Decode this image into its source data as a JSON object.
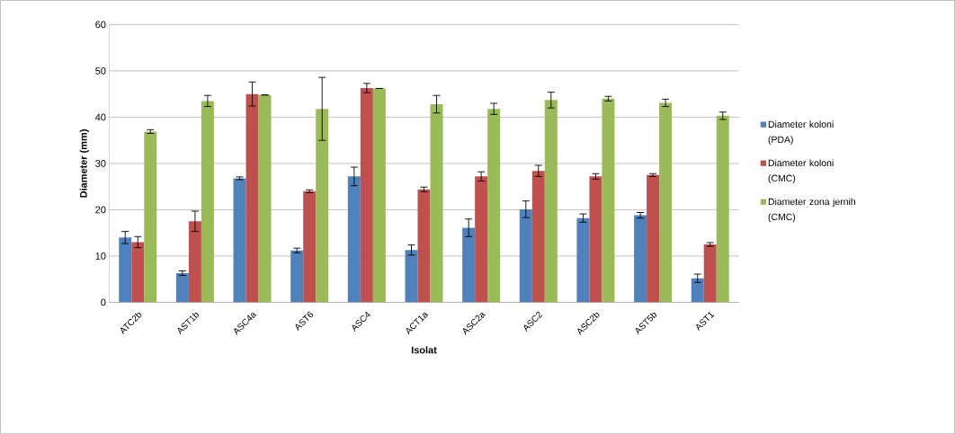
{
  "chart_data": {
    "type": "bar",
    "xlabel": "Isolat",
    "ylabel": "Diameter (mm)",
    "categories": [
      "ATC2b",
      "AST1b",
      "ASC4a",
      "AST6",
      "ASC4",
      "ACT1a",
      "ASC2a",
      "ASC2",
      "ASC2b",
      "AST5b",
      "AST1"
    ],
    "series": [
      {
        "name": "Diameter koloni (PDA)",
        "color": "#4f81bd",
        "values": [
          14,
          6.3,
          26.8,
          11.2,
          27.2,
          11.3,
          16.1,
          20.1,
          18.2,
          18.8,
          5.2
        ],
        "errors": [
          1.3,
          0.5,
          0.3,
          0.5,
          2,
          1.1,
          1.9,
          1.8,
          0.9,
          0.6,
          0.9
        ]
      },
      {
        "name": "Diameter koloni (CMC)",
        "color": "#c0504d",
        "values": [
          13,
          17.5,
          45,
          24,
          46.3,
          24.4,
          27.2,
          28.4,
          27.2,
          27.5,
          12.5
        ],
        "errors": [
          1.2,
          2.2,
          2.6,
          0.3,
          1,
          0.5,
          1,
          1.2,
          0.6,
          0.3,
          0.4
        ]
      },
      {
        "name": "Diameter zona jernih (CMC)",
        "color": "#9bbb59",
        "values": [
          36.9,
          43.5,
          44.8,
          41.8,
          46.2,
          42.8,
          41.8,
          43.7,
          44,
          43.1,
          40.3
        ],
        "errors": [
          0.4,
          1.2,
          0,
          6.8,
          0,
          1.9,
          1.2,
          1.7,
          0.5,
          0.8,
          0.8
        ]
      }
    ],
    "ylim": [
      0,
      60
    ],
    "yticks": [
      0,
      10,
      20,
      30,
      40,
      50,
      60
    ],
    "grid": "y",
    "legend": "right"
  }
}
